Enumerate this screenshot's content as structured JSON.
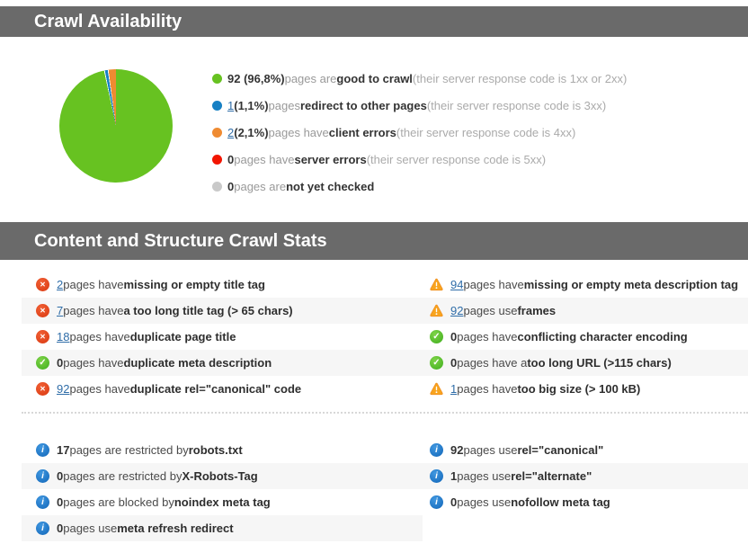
{
  "availability": {
    "title": "Crawl Availability",
    "chart_data": {
      "type": "pie",
      "labels": [
        "good to crawl",
        "redirect to other pages",
        "client errors",
        "server errors",
        "not yet checked"
      ],
      "values": [
        92,
        1,
        2,
        0,
        0
      ],
      "percent_labels": [
        "96,8%",
        "1,1%",
        "2,1%",
        "",
        ""
      ],
      "colors": [
        "#67c221",
        "#1780c4",
        "#ef8b32",
        "#f21500",
        "#c9c9c9"
      ],
      "legend_position": "right"
    },
    "legend": [
      {
        "color": "#67c221",
        "count": "92 (96,8%)",
        "mid": "pages are",
        "strong": "good to crawl",
        "note": "(their server response code is 1xx or 2xx)"
      },
      {
        "color": "#1780c4",
        "link": "1",
        "count": "(1,1%)",
        "mid": "pages",
        "strong": "redirect to other pages",
        "note": "(their server response code is 3xx)"
      },
      {
        "color": "#ef8b32",
        "link": "2",
        "count": "(2,1%)",
        "mid": "pages have",
        "strong": "client errors",
        "note": "(their server response code is 4xx)"
      },
      {
        "color": "#f21500",
        "count": "0",
        "mid": "pages have",
        "strong": "server errors",
        "note": "(their server response code is 5xx)"
      },
      {
        "color": "#c9c9c9",
        "count": "0",
        "mid": "pages are",
        "strong": "not yet checked",
        "note": ""
      }
    ]
  },
  "content": {
    "title": "Content and Structure Crawl Stats",
    "stats_left": [
      {
        "icon": "error",
        "link": "2",
        "mid": "pages have",
        "strong": "missing or empty title tag"
      },
      {
        "icon": "error",
        "link": "7",
        "mid": "pages have",
        "strong": "a too long title tag (> 65 chars)"
      },
      {
        "icon": "error",
        "link": "18",
        "mid": "pages have",
        "strong": "duplicate page title"
      },
      {
        "icon": "ok",
        "count": "0",
        "mid": "pages have",
        "strong": "duplicate meta description"
      },
      {
        "icon": "error",
        "link": "92",
        "mid": "pages have",
        "strong": "duplicate rel=\"canonical\" code"
      }
    ],
    "stats_right": [
      {
        "icon": "warning",
        "link": "94",
        "mid": "pages have",
        "strong": "missing or empty meta description tag"
      },
      {
        "icon": "warning",
        "link": "92",
        "mid": "pages use",
        "strong": "frames"
      },
      {
        "icon": "ok",
        "count": "0",
        "mid": "pages have",
        "strong": "conflicting character encoding"
      },
      {
        "icon": "ok",
        "count": "0",
        "mid": "pages have a",
        "strong": "too long URL (>115 chars)"
      },
      {
        "icon": "warning",
        "link": "1",
        "mid": "pages have",
        "strong": "too big size (> 100 kB)"
      }
    ],
    "info_left": [
      {
        "icon": "info",
        "count": "17",
        "mid": "pages are restricted by",
        "strong": "robots.txt"
      },
      {
        "icon": "info",
        "count": "0",
        "mid": "pages are restricted by",
        "strong": "X-Robots-Tag"
      },
      {
        "icon": "info",
        "count": "0",
        "mid": "pages are blocked by",
        "strong": "noindex meta tag"
      },
      {
        "icon": "info",
        "count": "0",
        "mid": "pages use",
        "strong": "meta refresh redirect"
      }
    ],
    "info_right": [
      {
        "icon": "info",
        "count": "92",
        "mid": "pages use",
        "strong": "rel=\"canonical\""
      },
      {
        "icon": "info",
        "count": "1",
        "mid": "pages use",
        "strong": "rel=\"alternate\""
      },
      {
        "icon": "info",
        "count": "0",
        "mid": "pages use",
        "strong": "nofollow meta tag"
      }
    ]
  }
}
